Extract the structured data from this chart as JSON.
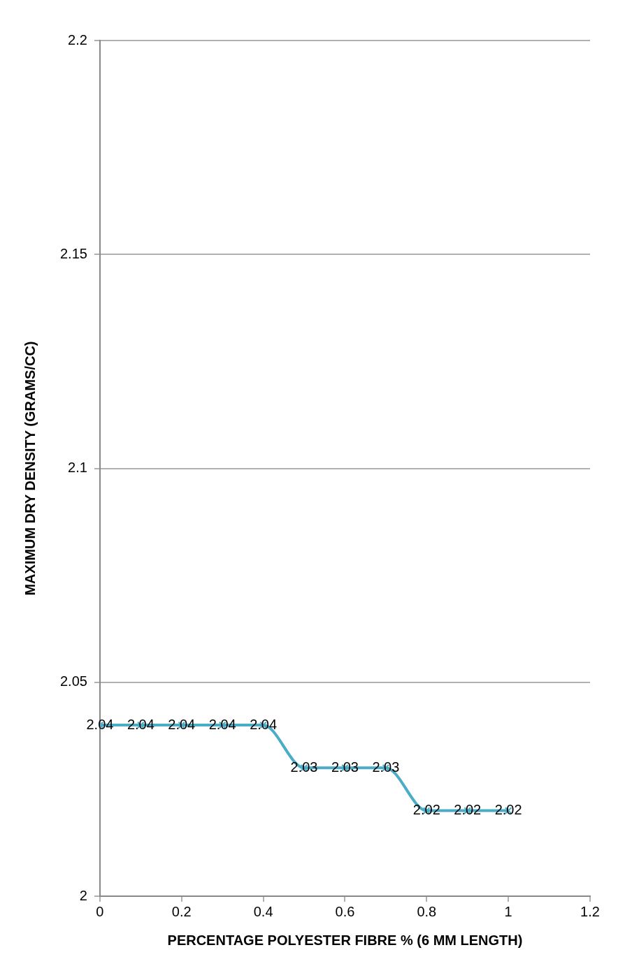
{
  "chart_data": {
    "type": "line",
    "xlabel": "PERCENTAGE POLYESTER FIBRE % (6 MM LENGTH)",
    "ylabel": "MAXIMUM DRY DENSITY (GRAMS/CC)",
    "x": [
      0,
      0.1,
      0.2,
      0.3,
      0.4,
      0.5,
      0.6,
      0.7,
      0.8,
      0.9,
      1
    ],
    "series": [
      {
        "color": "#4bacc6",
        "values": [
          2.04,
          2.04,
          2.04,
          2.04,
          2.04,
          2.03,
          2.03,
          2.03,
          2.02,
          2.02,
          2.02
        ]
      }
    ],
    "xlim": [
      0,
      1.2
    ],
    "xticks": [
      0,
      0.2,
      0.4,
      0.6,
      0.8,
      1,
      1.2
    ],
    "ylim": [
      2,
      2.2
    ],
    "yticks": [
      2,
      2.05,
      2.1,
      2.15,
      2.2
    ],
    "grid": "y",
    "data_labels": true,
    "marker": "cross",
    "line_style": "solid",
    "legend": false
  }
}
